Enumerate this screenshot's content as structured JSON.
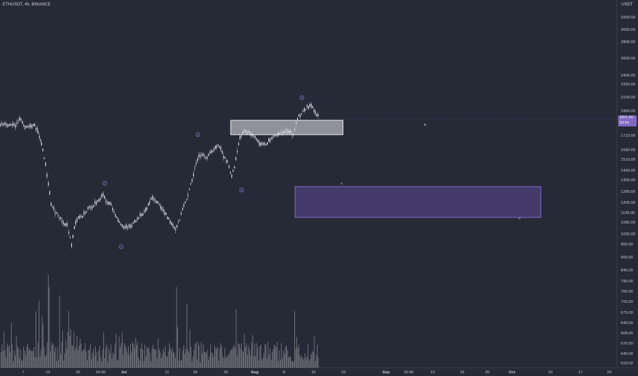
{
  "header": {
    "symbol": "ETHUSDT, 4h, BINANCE",
    "currency": "USDT"
  },
  "last_price": {
    "value": "1871.60",
    "countdown": "53:54"
  },
  "colors": {
    "background": "#262936",
    "wick": "#9a9caa",
    "body": "#e8e8ee",
    "accent": "#7e68c2",
    "volume": "#8c8d96"
  },
  "y_axis": {
    "labels": [
      "3200.00",
      "3000.00",
      "2800.00",
      "2600.00",
      "2400.00",
      "2250.00",
      "2100.00",
      "1950.00",
      "1710.00",
      "1590.00",
      "1510.00",
      "1430.00",
      "1355.00",
      "1280.00",
      "1205.00",
      "1145.00",
      "1085.00",
      "1025.00",
      "965.00",
      "905.00",
      "845.00",
      "795.00",
      "755.00",
      "715.00",
      "675.00",
      "640.00",
      "608.00",
      "576.00",
      "546.00",
      "519.00"
    ]
  },
  "x_axis": {
    "labels": [
      "7",
      "13",
      "20",
      "15:00",
      "Jul",
      "11",
      "18",
      "25",
      "Aug",
      "8",
      "15",
      "22",
      "Sep",
      "15:00",
      "12",
      "19",
      "25",
      "Oct",
      "10",
      "17",
      "24"
    ]
  },
  "annotations": {
    "wave_labels": [
      "1",
      "2",
      "3",
      "4",
      "5"
    ],
    "corrective_labels": [
      "A",
      "B",
      "C"
    ]
  },
  "zones": [
    {
      "name": "resistance-box",
      "fill": "rgba(230,230,235,0.55)",
      "stroke": "#f2f2f6"
    },
    {
      "name": "target-box",
      "fill": "rgba(92,72,150,0.55)",
      "stroke": "#8a70d0"
    }
  ]
}
